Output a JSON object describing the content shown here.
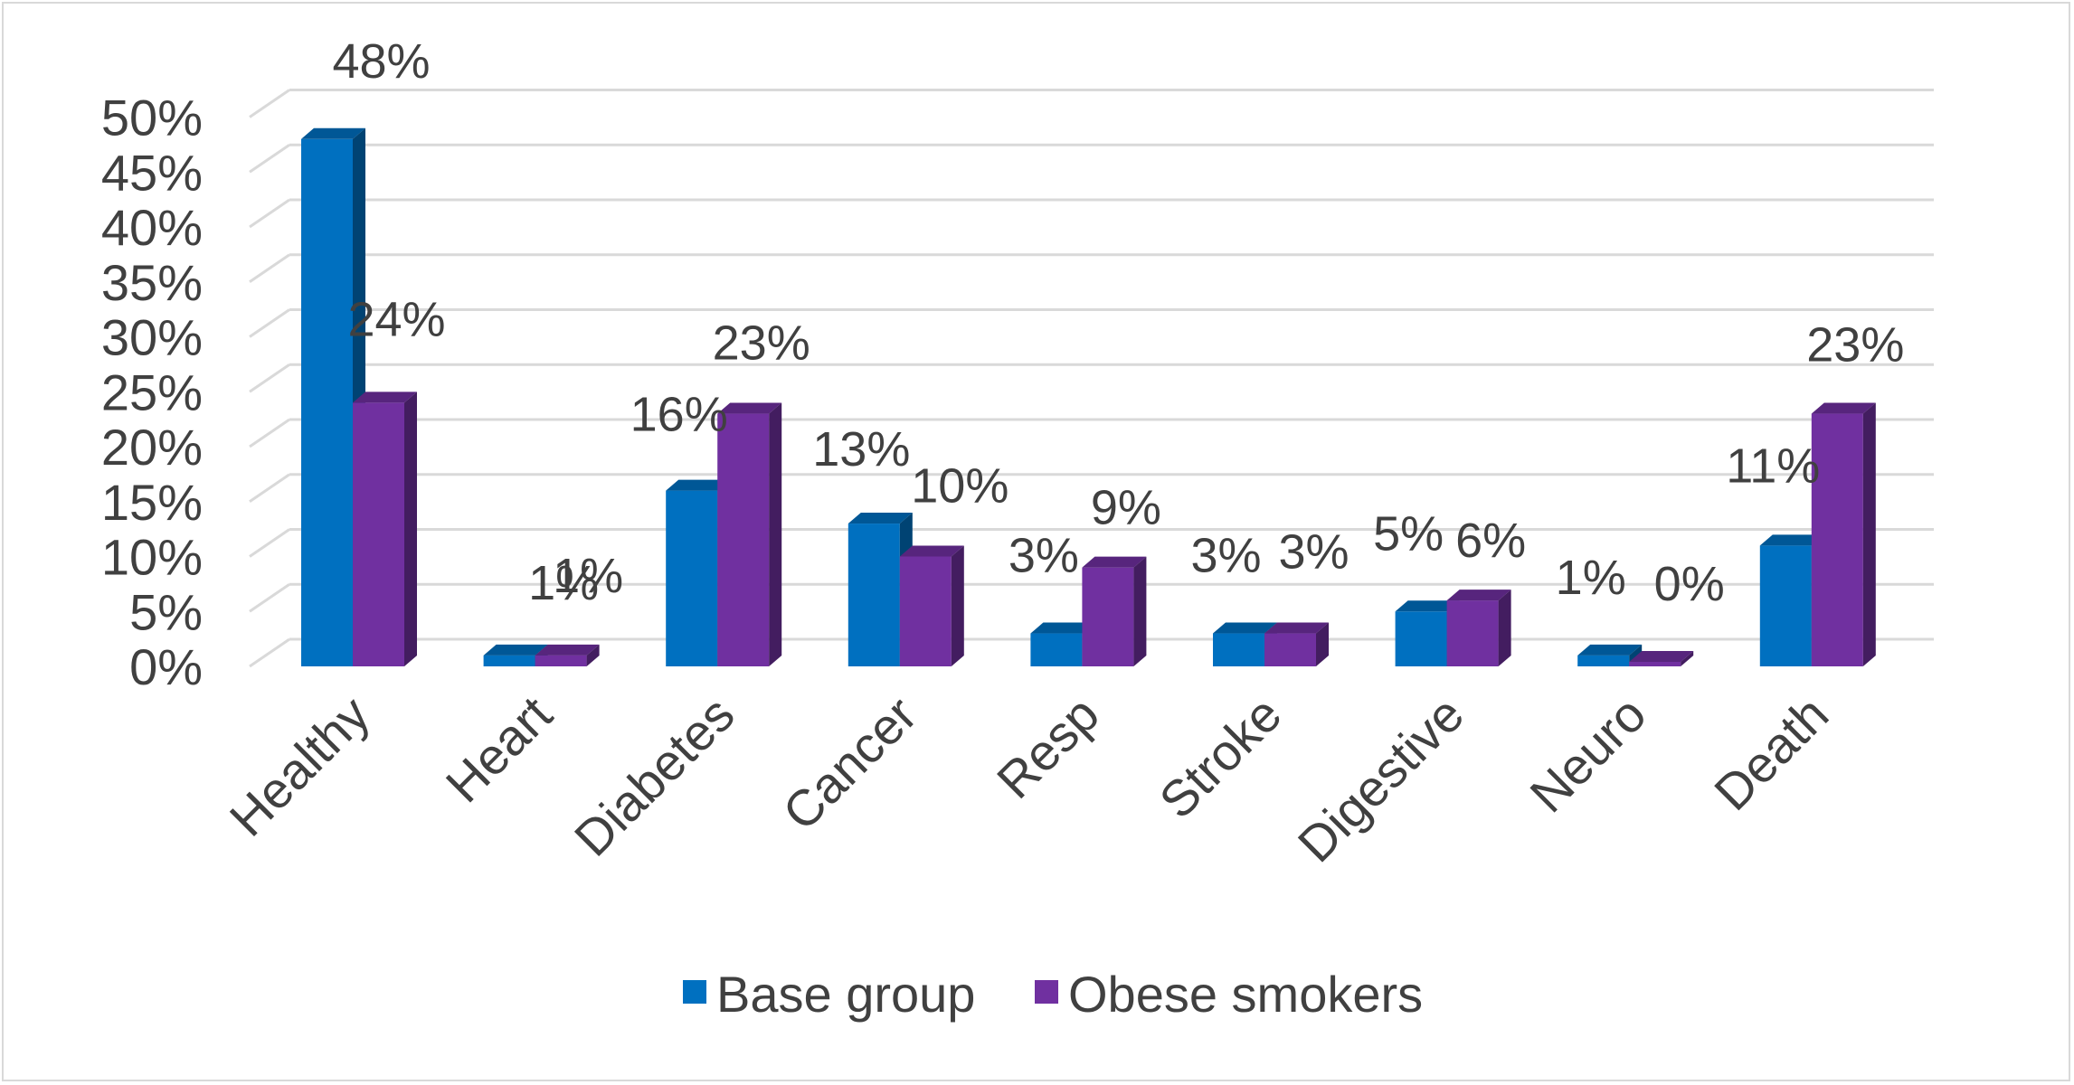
{
  "chart_data": {
    "type": "bar",
    "style": "3d-clustered-column",
    "title": "",
    "xlabel": "",
    "ylabel": "",
    "categories": [
      "Healthy",
      "Heart",
      "Diabetes",
      "Cancer",
      "Resp",
      "Stroke",
      "Digestive",
      "Neuro",
      "Death"
    ],
    "series": [
      {
        "name": "Base group",
        "color": "#0070c0",
        "values": [
          48,
          1,
          16,
          13,
          3,
          3,
          5,
          1,
          11
        ],
        "labels": [
          "48%",
          "1%",
          "16%",
          "13%",
          "3%",
          "3%",
          "5%",
          "1%",
          "11%"
        ]
      },
      {
        "name": "Obese smokers",
        "color": "#7030a0",
        "values": [
          24,
          1,
          23,
          10,
          9,
          3,
          6,
          0,
          23
        ],
        "labels": [
          "24%",
          "1%",
          "23%",
          "10%",
          "9%",
          "3%",
          "6%",
          "0%",
          "23%"
        ]
      }
    ],
    "yticks": [
      "0%",
      "5%",
      "10%",
      "15%",
      "20%",
      "25%",
      "30%",
      "35%",
      "40%",
      "45%",
      "50%"
    ],
    "ylim": [
      0,
      50
    ],
    "grid": true,
    "legend": "bottom"
  }
}
